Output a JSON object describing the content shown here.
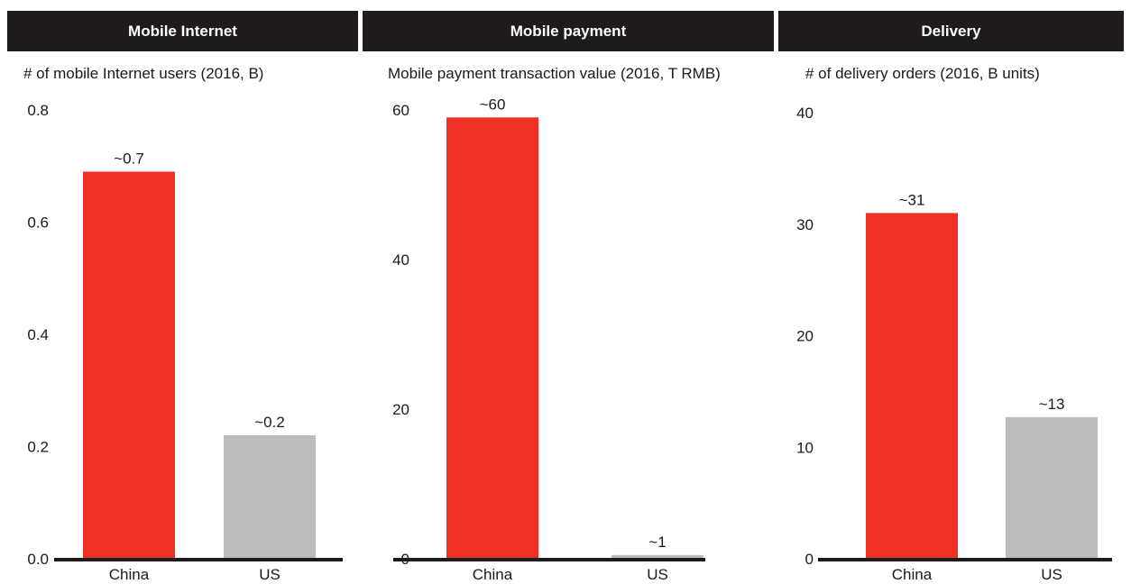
{
  "panels": [
    {
      "header": "Mobile Internet",
      "subtitle": "# of mobile Internet users (2016, B)"
    },
    {
      "header": "Mobile payment",
      "subtitle": "Mobile payment transaction value (2016, T RMB)"
    },
    {
      "header": "Delivery",
      "subtitle": "# of delivery orders (2016, B units)"
    }
  ],
  "colors": {
    "china": "#ee3124",
    "us": "#bbbcbe",
    "axis": "#1f1b1c",
    "header_bg": "#1f1b1c"
  },
  "chart_data": [
    {
      "type": "bar",
      "title": "Mobile Internet",
      "ylabel": "# of mobile Internet users (2016, B)",
      "categories": [
        "China",
        "US"
      ],
      "values": [
        0.69,
        0.22
      ],
      "data_labels": [
        "~0.7",
        "~0.2"
      ],
      "ylim": [
        0,
        0.8
      ],
      "yticks": [
        0.0,
        0.2,
        0.4,
        0.6,
        0.8
      ],
      "ytick_labels": [
        "0.0",
        "0.2",
        "0.4",
        "0.6",
        "0.8"
      ],
      "grid": false
    },
    {
      "type": "bar",
      "title": "Mobile payment",
      "ylabel": "Mobile payment transaction value (2016, T RMB)",
      "categories": [
        "China",
        "US"
      ],
      "values": [
        59,
        0.5
      ],
      "data_labels": [
        "~60",
        "~1"
      ],
      "ylim": [
        0,
        60
      ],
      "yticks": [
        0,
        20,
        40,
        60
      ],
      "ytick_labels": [
        "0",
        "20",
        "40",
        "60"
      ],
      "grid": false
    },
    {
      "type": "bar",
      "title": "Delivery",
      "ylabel": "# of delivery orders (2016, B units)",
      "categories": [
        "China",
        "US"
      ],
      "values": [
        31,
        12.7
      ],
      "data_labels": [
        "~31",
        "~13"
      ],
      "ylim": [
        0,
        40
      ],
      "yticks": [
        0,
        10,
        20,
        30,
        40
      ],
      "ytick_labels": [
        "0",
        "10",
        "20",
        "30",
        "40"
      ],
      "grid": false
    }
  ]
}
